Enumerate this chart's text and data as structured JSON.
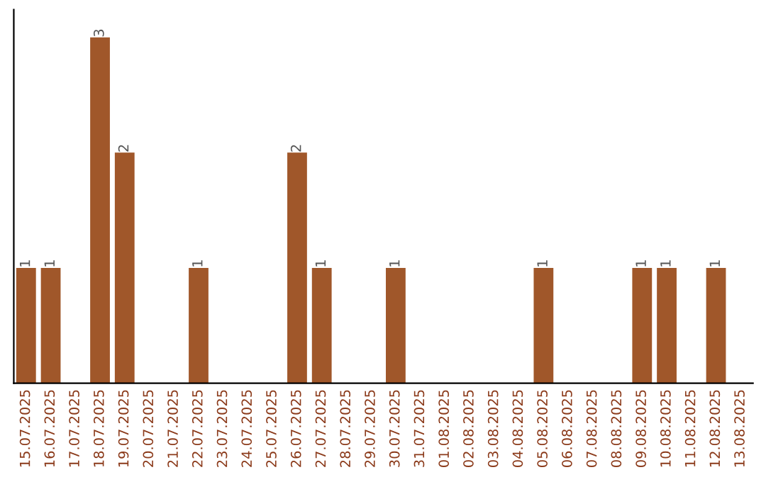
{
  "chart_data": {
    "type": "bar",
    "categories": [
      "15.07.2025",
      "16.07.2025",
      "17.07.2025",
      "18.07.2025",
      "19.07.2025",
      "20.07.2025",
      "21.07.2025",
      "22.07.2025",
      "23.07.2025",
      "24.07.2025",
      "25.07.2025",
      "26.07.2025",
      "27.07.2025",
      "28.07.2025",
      "29.07.2025",
      "30.07.2025",
      "31.07.2025",
      "01.08.2025",
      "02.08.2025",
      "03.08.2025",
      "04.08.2025",
      "05.08.2025",
      "06.08.2025",
      "07.08.2025",
      "08.08.2025",
      "09.08.2025",
      "10.08.2025",
      "11.08.2025",
      "12.08.2025",
      "13.08.2025"
    ],
    "values": [
      1,
      1,
      0,
      3,
      2,
      0,
      0,
      1,
      0,
      0,
      0,
      2,
      1,
      0,
      0,
      1,
      0,
      0,
      0,
      0,
      0,
      1,
      0,
      0,
      0,
      1,
      1,
      0,
      1,
      0
    ],
    "value_labels": [
      "1",
      "1",
      null,
      "3",
      "2",
      null,
      null,
      "1",
      null,
      null,
      null,
      "2",
      "1",
      null,
      null,
      "1",
      null,
      null,
      null,
      null,
      null,
      "1",
      null,
      null,
      null,
      "1",
      "1",
      null,
      "1",
      null
    ],
    "color": "#a0572a",
    "tick_labels": "x",
    "grid": false
  }
}
